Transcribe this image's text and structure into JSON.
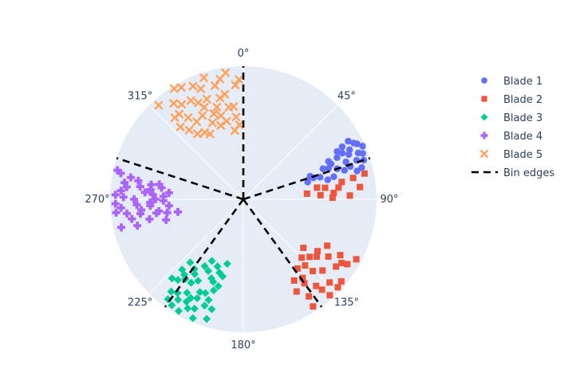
{
  "chart_data": {
    "type": "scatter",
    "subtype": "polar",
    "angular_axis": {
      "direction": "clockwise",
      "rotation": "0° at top",
      "unit": "degrees",
      "tick_values": [
        0,
        45,
        90,
        135,
        180,
        225,
        270,
        315
      ],
      "tick_labels": [
        "0°",
        "45°",
        "90°",
        "135°",
        "180°",
        "225°",
        "270°",
        "315°"
      ],
      "grid": true
    },
    "radial_axis": {
      "range": [
        0,
        1
      ],
      "show_tick_labels": false,
      "grid": false
    },
    "legend": {
      "position": "top-right"
    },
    "series": [
      {
        "name": "Blade 1",
        "marker": "circle",
        "color": "#636efa",
        "points": [
          [
            63,
            0.93
          ],
          [
            65,
            0.88
          ],
          [
            62,
            0.84
          ],
          [
            66,
            0.98
          ],
          [
            64,
            0.95
          ],
          [
            68,
            0.93
          ],
          [
            61,
            0.9
          ],
          [
            67,
            0.86
          ],
          [
            69,
            0.96
          ],
          [
            70,
            0.82
          ],
          [
            63,
            0.79
          ],
          [
            66,
            0.77
          ],
          [
            71,
            0.9
          ],
          [
            72,
            0.95
          ],
          [
            68,
            0.71
          ],
          [
            73,
            0.84
          ],
          [
            65,
            0.82
          ],
          [
            74,
            0.79
          ],
          [
            70,
            0.68
          ],
          [
            75,
            0.92
          ],
          [
            72,
            0.74
          ],
          [
            76,
            0.88
          ],
          [
            74,
            0.6
          ],
          [
            77,
            0.65
          ],
          [
            73,
            0.55
          ],
          [
            69,
            0.64
          ],
          [
            71,
            0.53
          ],
          [
            76,
            0.7
          ],
          [
            75,
            0.5
          ],
          [
            66,
            0.7
          ]
        ]
      },
      {
        "name": "Blade 2",
        "marker": "square",
        "color": "#EF553B",
        "points": [
          [
            78,
            0.93
          ],
          [
            80,
            0.75
          ],
          [
            82,
            0.62
          ],
          [
            84,
            0.88
          ],
          [
            85,
            0.48
          ],
          [
            86,
            0.68
          ],
          [
            87,
            0.58
          ],
          [
            88,
            0.8
          ],
          [
            81,
            0.56
          ],
          [
            83,
            0.72
          ],
          [
            89,
            0.67
          ],
          [
            79,
            0.84
          ],
          [
            118,
            0.96
          ],
          [
            120,
            0.84
          ],
          [
            122,
            0.92
          ],
          [
            124,
            0.77
          ],
          [
            126,
            0.86
          ],
          [
            128,
            0.7
          ],
          [
            130,
            0.96
          ],
          [
            132,
            0.8
          ],
          [
            134,
            0.9
          ],
          [
            136,
            0.75
          ],
          [
            138,
            0.97
          ],
          [
            140,
            0.85
          ],
          [
            142,
            0.66
          ],
          [
            144,
            0.78
          ],
          [
            146,
            0.88
          ],
          [
            148,
            0.72
          ],
          [
            125,
            0.68
          ],
          [
            135,
            0.62
          ],
          [
            150,
            0.8
          ],
          [
            119,
            0.72
          ],
          [
            129,
            0.58
          ],
          [
            139,
            0.9
          ],
          [
            147,
            0.96
          ],
          [
            137,
            0.68
          ],
          [
            143,
            0.74
          ],
          [
            131,
            0.66
          ],
          [
            123,
            0.88
          ],
          [
            133,
            0.97
          ]
        ]
      },
      {
        "name": "Blade 3",
        "marker": "diamond",
        "color": "#00cc96",
        "points": [
          [
            195,
            0.6
          ],
          [
            198,
            0.72
          ],
          [
            200,
            0.85
          ],
          [
            202,
            0.64
          ],
          [
            205,
            0.77
          ],
          [
            207,
            0.92
          ],
          [
            209,
            0.7
          ],
          [
            211,
            0.82
          ],
          [
            214,
            0.96
          ],
          [
            216,
            0.74
          ],
          [
            218,
            0.88
          ],
          [
            220,
            0.62
          ],
          [
            222,
            0.8
          ],
          [
            197,
            0.94
          ],
          [
            203,
            0.97
          ],
          [
            210,
            0.58
          ],
          [
            213,
            0.67
          ],
          [
            199,
            0.8
          ],
          [
            206,
            0.6
          ],
          [
            217,
            0.94
          ],
          [
            201,
            0.54
          ],
          [
            208,
            0.84
          ],
          [
            212,
            0.74
          ],
          [
            215,
            0.86
          ],
          [
            196,
            0.68
          ],
          [
            204,
            0.9
          ],
          [
            219,
            0.78
          ],
          [
            194,
            0.5
          ],
          [
            221,
            0.7
          ],
          [
            210,
            0.97
          ],
          [
            200,
            0.66
          ],
          [
            207,
            0.52
          ],
          [
            215,
            0.64
          ],
          [
            205,
            0.82
          ],
          [
            198,
            0.58
          ],
          [
            213,
            0.9
          ],
          [
            202,
            0.76
          ],
          [
            209,
            0.88
          ],
          [
            196,
            0.86
          ],
          [
            218,
            0.72
          ]
        ]
      },
      {
        "name": "Blade 4",
        "marker": "cross",
        "color": "#ab63fa",
        "points": [
          [
            255,
            0.6
          ],
          [
            258,
            0.72
          ],
          [
            260,
            0.85
          ],
          [
            262,
            0.64
          ],
          [
            264,
            0.77
          ],
          [
            266,
            0.92
          ],
          [
            268,
            0.7
          ],
          [
            270,
            0.82
          ],
          [
            272,
            0.96
          ],
          [
            274,
            0.74
          ],
          [
            276,
            0.88
          ],
          [
            278,
            0.62
          ],
          [
            280,
            0.8
          ],
          [
            282,
            0.94
          ],
          [
            257,
            0.94
          ],
          [
            259,
            0.5
          ],
          [
            261,
            0.66
          ],
          [
            263,
            0.88
          ],
          [
            265,
            0.56
          ],
          [
            267,
            0.8
          ],
          [
            269,
            0.6
          ],
          [
            271,
            0.9
          ],
          [
            273,
            0.68
          ],
          [
            275,
            0.56
          ],
          [
            277,
            0.78
          ],
          [
            279,
            0.7
          ],
          [
            281,
            0.86
          ],
          [
            283,
            0.97
          ],
          [
            256,
            0.82
          ],
          [
            266,
            0.7
          ],
          [
            270,
            0.66
          ],
          [
            274,
            0.92
          ],
          [
            262,
            0.78
          ],
          [
            278,
            0.9
          ],
          [
            268,
            0.96
          ],
          [
            272,
            0.6
          ],
          [
            260,
            0.58
          ],
          [
            276,
            0.7
          ],
          [
            264,
            0.96
          ],
          [
            280,
            0.64
          ]
        ]
      },
      {
        "name": "Blade 5",
        "marker": "x",
        "color": "#FFA15A",
        "points": [
          [
            318,
            0.95
          ],
          [
            320,
            0.8
          ],
          [
            322,
            0.66
          ],
          [
            324,
            0.89
          ],
          [
            326,
            0.74
          ],
          [
            328,
            0.98
          ],
          [
            330,
            0.58
          ],
          [
            332,
            0.84
          ],
          [
            334,
            0.7
          ],
          [
            336,
            0.93
          ],
          [
            338,
            0.62
          ],
          [
            340,
            0.8
          ],
          [
            342,
            0.96
          ],
          [
            344,
            0.72
          ],
          [
            346,
            0.88
          ],
          [
            348,
            0.6
          ],
          [
            350,
            0.8
          ],
          [
            352,
            0.96
          ],
          [
            354,
            0.7
          ],
          [
            356,
            0.86
          ],
          [
            357,
            0.56
          ],
          [
            319,
            0.72
          ],
          [
            325,
            0.6
          ],
          [
            331,
            0.96
          ],
          [
            337,
            0.75
          ],
          [
            343,
            0.58
          ],
          [
            349,
            0.92
          ],
          [
            355,
            0.62
          ],
          [
            327,
            0.85
          ],
          [
            333,
            0.55
          ],
          [
            339,
            0.89
          ],
          [
            345,
            0.65
          ],
          [
            351,
            0.7
          ],
          [
            335,
            0.8
          ],
          [
            341,
            0.68
          ],
          [
            347,
            0.78
          ],
          [
            353,
            0.52
          ],
          [
            329,
            0.68
          ],
          [
            323,
            0.8
          ],
          [
            358,
            0.9
          ]
        ]
      },
      {
        "name": "Bin edges",
        "type": "lines",
        "line_style": "dash",
        "color": "#000000",
        "angles": [
          0,
          72,
          144,
          216,
          288
        ]
      }
    ]
  }
}
